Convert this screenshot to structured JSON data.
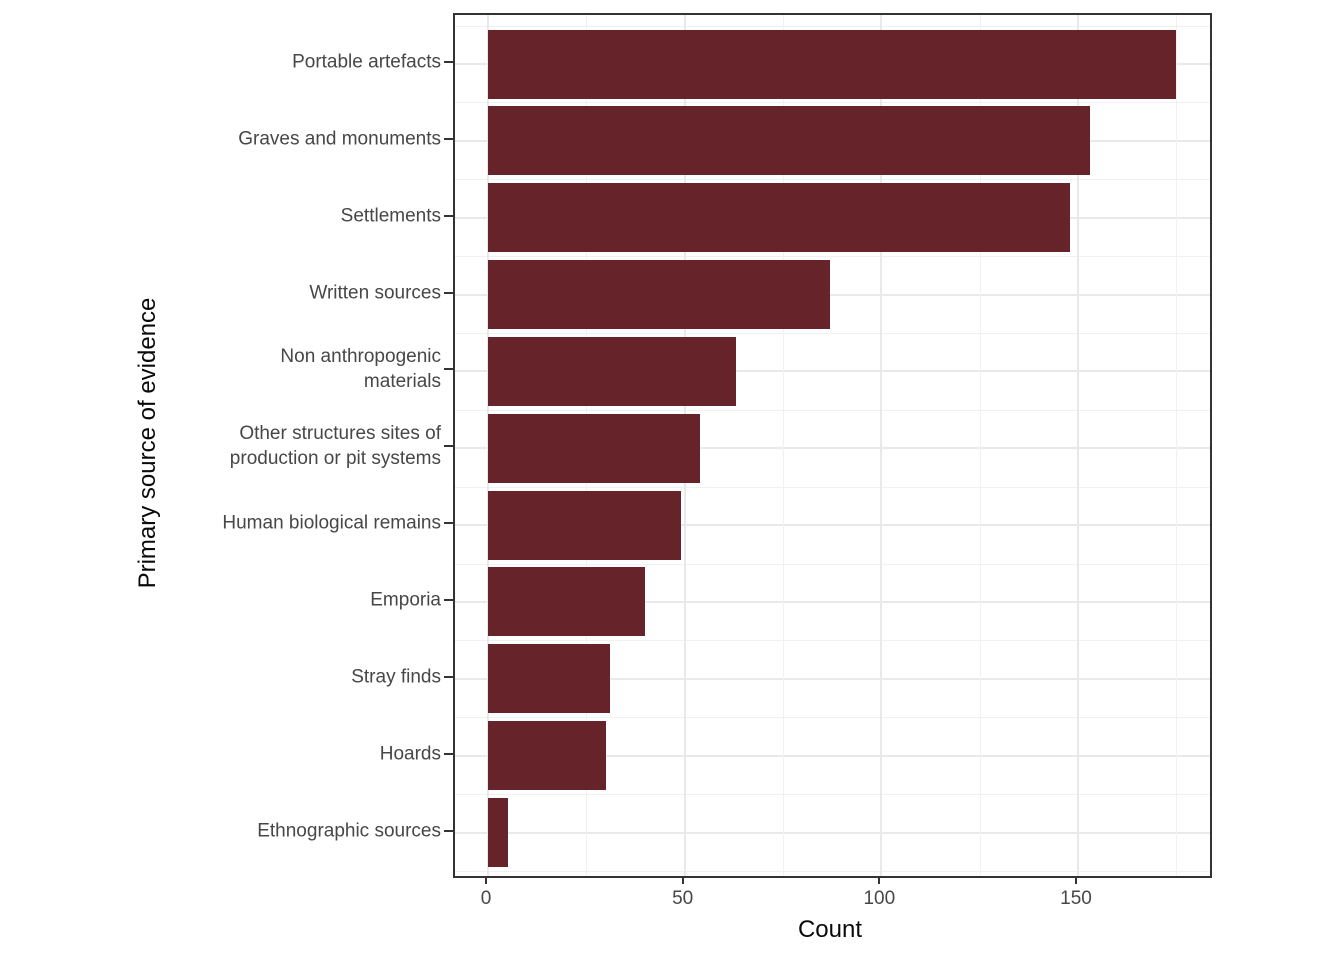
{
  "chart_data": {
    "type": "bar",
    "orientation": "horizontal",
    "title": "",
    "xlabel": "Count",
    "ylabel": "Primary source of evidence",
    "categories": [
      "Portable artefacts",
      "Graves and monuments",
      "Settlements",
      "Written sources",
      "Non anthropogenic\nmaterials",
      "Other structures sites of\nproduction or pit systems",
      "Human biological remains",
      "Emporia",
      "Stray finds",
      "Hoards",
      "Ethnographic sources"
    ],
    "values": [
      175,
      153,
      148,
      87,
      63,
      54,
      49,
      40,
      31,
      30,
      5
    ],
    "xlim": [
      0,
      183
    ],
    "x_major_ticks": [
      0,
      50,
      100,
      150
    ],
    "x_minor_ticks": [
      25,
      75,
      125,
      175
    ],
    "bar_color": "#67232a",
    "panel_background": "#ffffff",
    "panel_border_color": "#333333",
    "grid": true,
    "grid_major_color": "#e9e9e9",
    "grid_minor_color": "#f1f1f1",
    "axis_text_color": "#474747",
    "axis_title_color": "#0a0a0a",
    "legend": false
  }
}
